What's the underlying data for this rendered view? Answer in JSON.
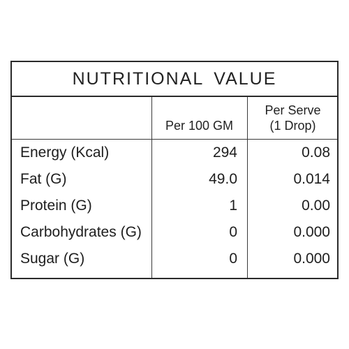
{
  "table": {
    "title": "NUTRITIONAL VALUE",
    "headers": {
      "per_100": "Per 100 GM",
      "per_serve_line1": "Per Serve",
      "per_serve_line2": "(1 Drop)"
    },
    "rows": [
      {
        "nutrient": "Energy (Kcal)",
        "per_100": "294",
        "per_serve": "0.08"
      },
      {
        "nutrient": "Fat (G)",
        "per_100": "49.0",
        "per_serve": "0.014"
      },
      {
        "nutrient": "Protein (G)",
        "per_100": "1",
        "per_serve": "0.00"
      },
      {
        "nutrient": "Carbohydrates (G)",
        "per_100": "0",
        "per_serve": "0.000"
      },
      {
        "nutrient": "Sugar (G)",
        "per_100": "0",
        "per_serve": "0.000"
      }
    ]
  },
  "colors": {
    "border": "#2a2a2a",
    "text": "#1e1e1e",
    "background": "#ffffff"
  }
}
